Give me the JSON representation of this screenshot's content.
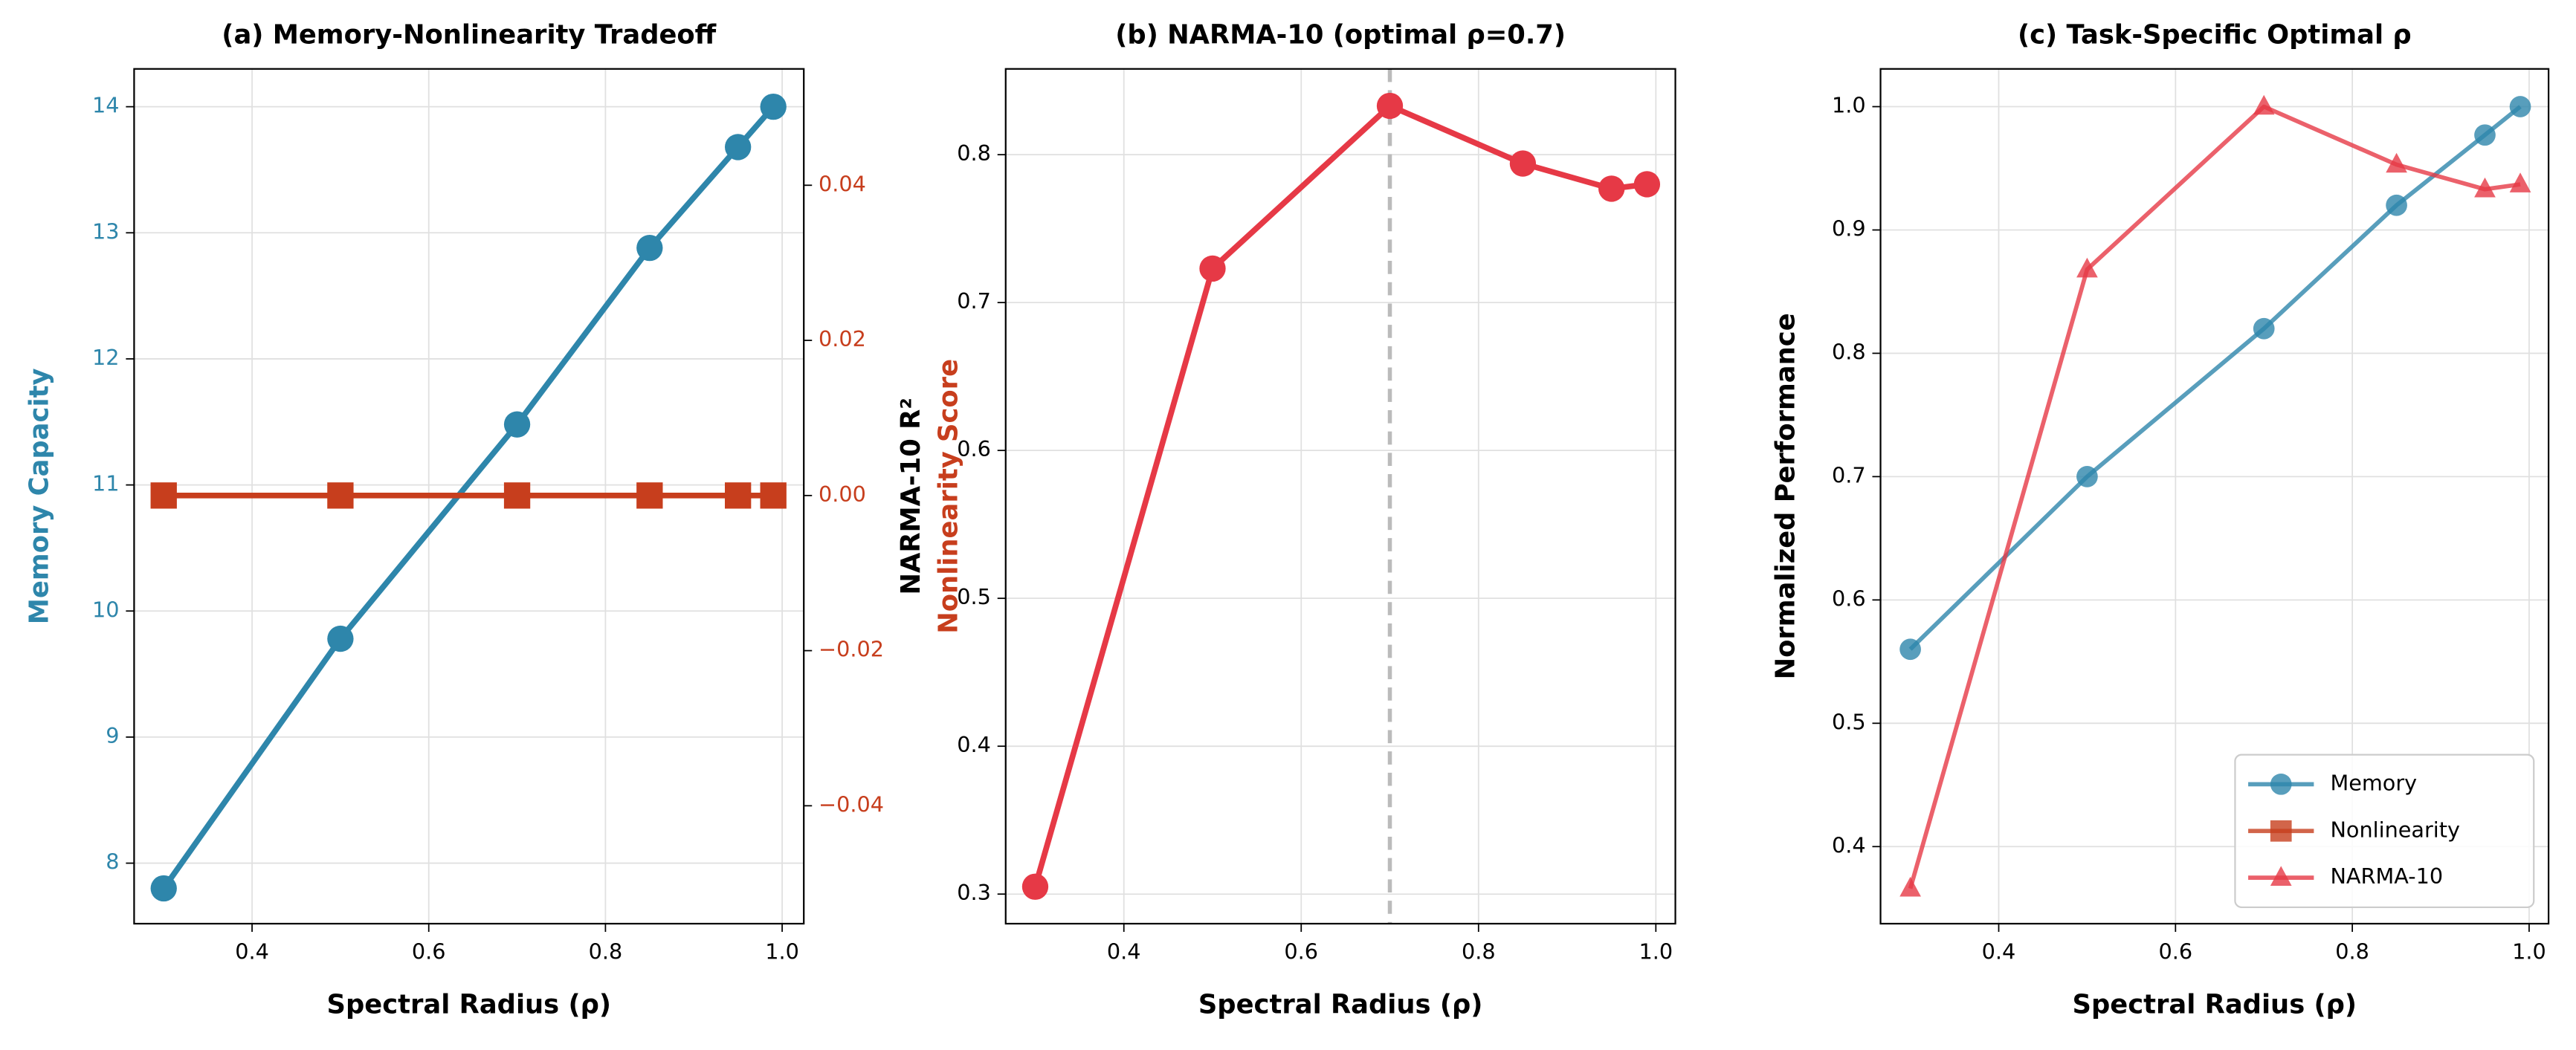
{
  "chart_data": [
    {
      "type": "line",
      "title": "(a) Memory-Nonlinearity Tradeoff",
      "xlabel": "Spectral Radius (ρ)",
      "ylabel": "Memory Capacity",
      "ylabel_color": "#2e86ab",
      "y2label": "Nonlinearity Score",
      "y2label_color": "#c73e1d",
      "x": [
        0.3,
        0.5,
        0.7,
        0.85,
        0.95,
        0.99
      ],
      "series": [
        {
          "name": "Memory",
          "color": "#2e86ab",
          "marker": "o",
          "values": [
            7.8,
            9.78,
            11.48,
            12.88,
            13.68,
            14.0
          ]
        },
        {
          "name": "Nonlinearity",
          "color": "#c73e1d",
          "marker": "s",
          "axis": "y2",
          "values": [
            0,
            0,
            0,
            0,
            0,
            0
          ]
        }
      ],
      "xlim": [
        0.2665,
        1.0245
      ],
      "xticks": [
        0.4,
        0.6,
        0.8,
        {
          "value": 1.0,
          "label": "1.0"
        }
      ],
      "ylim": [
        7.52,
        14.3
      ],
      "yticks": [
        8,
        9,
        10,
        11,
        12,
        13,
        14
      ],
      "y2lim": [
        -0.0552,
        0.055
      ],
      "y2ticks": [
        {
          "value": -0.04,
          "label": "−0.04"
        },
        {
          "value": -0.02,
          "label": "−0.02"
        },
        {
          "value": 0,
          "label": "0.00"
        },
        0.02,
        0.04
      ],
      "grid": true
    },
    {
      "type": "line",
      "title": "(b) NARMA-10 (optimal ρ=0.7)",
      "xlabel": "Spectral Radius (ρ)",
      "ylabel": "NARMA-10 R²",
      "x": [
        0.3,
        0.5,
        0.7,
        0.85,
        0.95,
        0.99
      ],
      "series": [
        {
          "name": "NARMA-10",
          "color": "#e63946",
          "marker": "o",
          "values": [
            0.305,
            0.723,
            0.833,
            0.794,
            0.777,
            0.78
          ]
        }
      ],
      "vline": 0.7,
      "vline_color": "#bbbbbb",
      "xlim": [
        0.2667,
        1.022
      ],
      "xticks": [
        0.4,
        0.6,
        0.8,
        {
          "value": 1.0,
          "label": "1.0"
        }
      ],
      "ylim": [
        0.28,
        0.858
      ],
      "yticks": [
        0.3,
        0.4,
        0.5,
        0.6,
        0.7,
        0.8
      ],
      "grid": true
    },
    {
      "type": "line",
      "title": "(c) Task-Specific Optimal ρ",
      "xlabel": "Spectral Radius (ρ)",
      "ylabel": "Normalized Performance",
      "x": [
        0.3,
        0.5,
        0.7,
        0.85,
        0.95,
        0.99
      ],
      "series": [
        {
          "name": "Memory",
          "color": "#2e86ab",
          "marker": "o",
          "values": [
            0.56,
            0.7,
            0.82,
            0.92,
            0.977,
            1.0
          ]
        },
        {
          "name": "Nonlinearity",
          "color": "#c73e1d",
          "marker": "s",
          "values": [
            null,
            null,
            null,
            null,
            null,
            null
          ]
        },
        {
          "name": "NARMA-10",
          "color": "#e63946",
          "marker": "^",
          "values": [
            0.366,
            0.868,
            1.0,
            0.953,
            0.933,
            0.937
          ]
        }
      ],
      "xlim": [
        0.2663,
        1.022
      ],
      "xticks": [
        0.4,
        0.6,
        0.8,
        {
          "value": 1.0,
          "label": "1.0"
        }
      ],
      "ylim": [
        0.3375,
        1.0306
      ],
      "yticks": [
        0.4,
        0.5,
        0.6,
        0.7,
        0.8,
        0.9,
        {
          "value": 1.0,
          "label": "1.0"
        }
      ],
      "legend": "lower right",
      "grid": true
    }
  ]
}
